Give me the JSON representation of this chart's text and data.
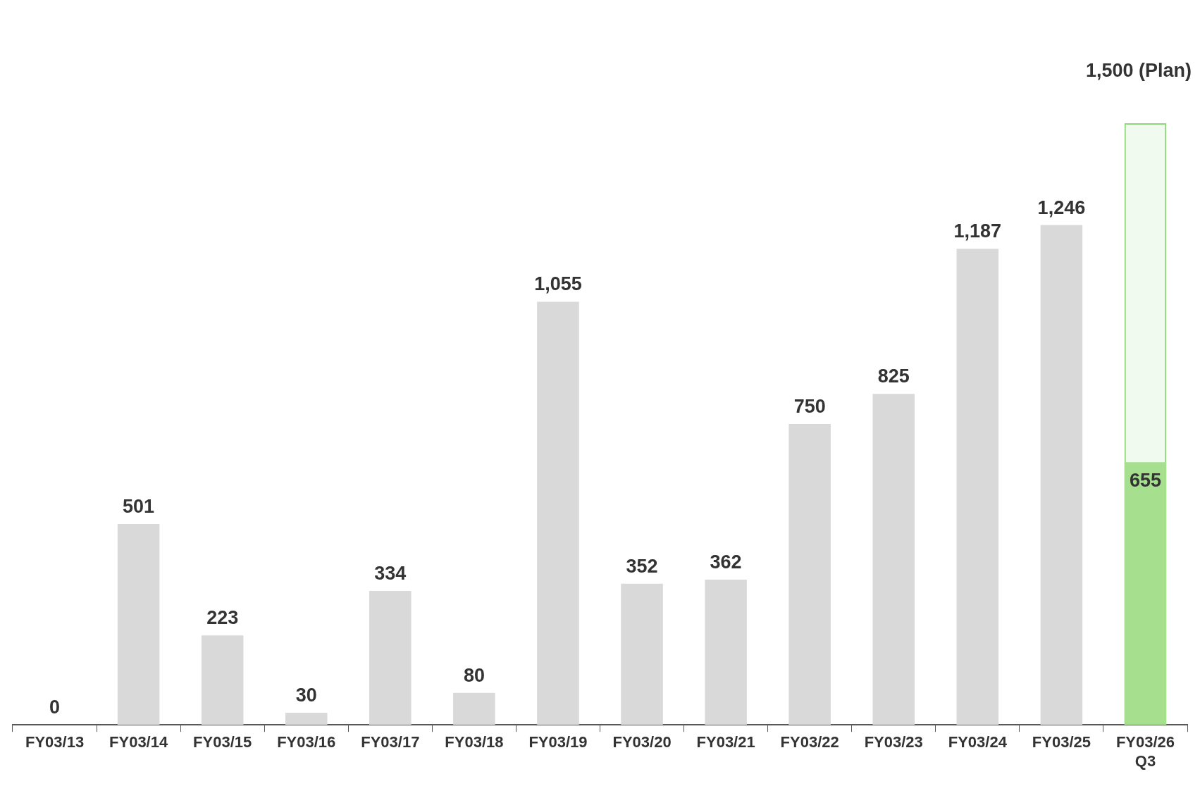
{
  "chart_data": {
    "type": "bar",
    "legend": false,
    "grid": false,
    "categories": [
      "FY03/13",
      "FY03/14",
      "FY03/15",
      "FY03/16",
      "FY03/17",
      "FY03/18",
      "FY03/19",
      "FY03/20",
      "FY03/21",
      "FY03/22",
      "FY03/23",
      "FY03/24",
      "FY03/25",
      "FY03/26\nQ3"
    ],
    "series": [
      {
        "colors": [
          "#d9d9d9",
          "#d9d9d9",
          "#d9d9d9",
          "#d9d9d9",
          "#d9d9d9",
          "#d9d9d9",
          "#d9d9d9",
          "#d9d9d9",
          "#d9d9d9",
          "#d9d9d9",
          "#d9d9d9",
          "#d9d9d9",
          "#d9d9d9",
          "#a6e08f"
        ],
        "values": [
          0,
          501,
          223,
          30,
          334,
          80,
          1055,
          352,
          362,
          750,
          825,
          1187,
          1246,
          655
        ],
        "value_labels": [
          "0",
          "501",
          "223",
          "30",
          "334",
          "80",
          "1,055",
          "352",
          "362",
          "750",
          "825",
          "1,187",
          "1,246",
          "655"
        ]
      },
      {
        "color": "#8fd67a",
        "line_style": "dashed",
        "values": [
          null,
          null,
          null,
          null,
          null,
          null,
          null,
          null,
          null,
          null,
          null,
          null,
          null,
          1500
        ],
        "value_labels": [
          null,
          null,
          null,
          null,
          null,
          null,
          null,
          null,
          null,
          null,
          null,
          null,
          null,
          "1,500 (Plan)"
        ]
      }
    ]
  }
}
